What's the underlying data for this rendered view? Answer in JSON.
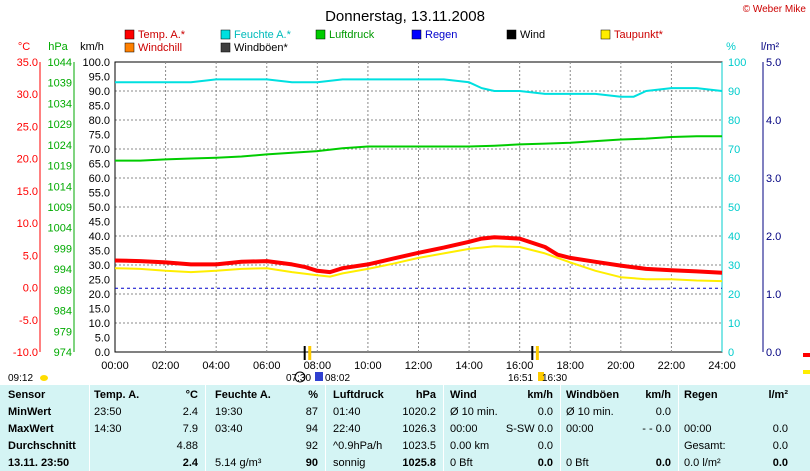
{
  "title": "Donnerstag, 13.11.2008",
  "credit": "© Weber Mike",
  "legend": [
    {
      "label": "Temp. A.*",
      "color": "#ff0000"
    },
    {
      "label": "Feuchte A.*",
      "color": "#00e0e0"
    },
    {
      "label": "Luftdruck",
      "color": "#00cc00"
    },
    {
      "label": "Regen",
      "color": "#0000ff"
    },
    {
      "label": "Wind",
      "color": "#000000"
    },
    {
      "label": "Taupunkt*",
      "color": "#ffee00"
    },
    {
      "label": "Windchill",
      "color": "#ff8000"
    },
    {
      "label": "Windböen*",
      "color": "#404040"
    }
  ],
  "axis_units": {
    "temp": "°C",
    "pressure": "hPa",
    "wind": "km/h",
    "humidity": "%",
    "rain": "l/m²"
  },
  "sun_times": {
    "sunrise": "07:30",
    "sunrise2": "08:02",
    "sunset": "16:51",
    "sunset2": "16:30"
  },
  "moon_time": "09:12",
  "chart_data": {
    "type": "line",
    "xlabel": "",
    "x_ticks": [
      "00:00",
      "02:00",
      "04:00",
      "06:00",
      "08:00",
      "10:00",
      "12:00",
      "14:00",
      "16:00",
      "18:00",
      "20:00",
      "22:00",
      "24:00"
    ],
    "temp_axis": {
      "range": [
        -10,
        35
      ],
      "ticks": [
        "35.0",
        "30.0",
        "25.0",
        "20.0",
        "15.0",
        "10.0",
        "5.0",
        "0.0",
        "-5.0",
        "-10.0"
      ]
    },
    "pressure_axis": {
      "range": [
        974,
        1044
      ],
      "ticks": [
        "1044",
        "1039",
        "1034",
        "1029",
        "1024",
        "1019",
        "1014",
        "1009",
        "1004",
        "999",
        "994",
        "989",
        "984",
        "979",
        "974"
      ]
    },
    "wind_axis": {
      "range": [
        0,
        100
      ],
      "ticks": [
        "100.0",
        "95.0",
        "90.0",
        "85.0",
        "80.0",
        "75.0",
        "70.0",
        "65.0",
        "60.0",
        "55.0",
        "50.0",
        "45.0",
        "40.0",
        "35.0",
        "30.0",
        "25.0",
        "20.0",
        "15.0",
        "10.0",
        "5.0",
        "0.0"
      ]
    },
    "humidity_axis": {
      "range": [
        0,
        100
      ],
      "ticks": [
        "100",
        "90",
        "80",
        "70",
        "60",
        "50",
        "40",
        "30",
        "20",
        "10",
        "0"
      ]
    },
    "rain_axis": {
      "range": [
        0,
        5
      ],
      "ticks": [
        "5.0",
        "4.0",
        "3.0",
        "2.0",
        "1.0",
        "0.0"
      ]
    },
    "grid": true,
    "series": [
      {
        "name": "Feuchte A.*",
        "axis": "humidity",
        "color": "#00e0e0",
        "x": [
          0,
          1,
          2,
          3,
          4,
          5,
          6,
          7,
          8,
          9,
          10,
          11,
          12,
          13,
          14,
          14.5,
          15,
          16,
          17,
          18,
          19,
          20,
          20.5,
          21,
          22,
          23,
          24
        ],
        "y": [
          93,
          93,
          93,
          93,
          94,
          94,
          94,
          93,
          93,
          94,
          94,
          94,
          94,
          94,
          93,
          91,
          90,
          90,
          89,
          89,
          89,
          88,
          88,
          90,
          91,
          91,
          90
        ]
      },
      {
        "name": "Luftdruck",
        "axis": "pressure",
        "color": "#00cc00",
        "x": [
          0,
          1,
          2,
          3,
          4,
          5,
          6,
          7,
          8,
          9,
          10,
          11,
          12,
          13,
          14,
          15,
          16,
          17,
          18,
          19,
          20,
          21,
          22,
          23,
          24
        ],
        "y": [
          1020.2,
          1020.2,
          1020.5,
          1020.7,
          1020.9,
          1021.2,
          1021.7,
          1022.1,
          1022.5,
          1023.2,
          1023.6,
          1023.6,
          1023.6,
          1023.6,
          1023.6,
          1023.8,
          1024.1,
          1024.3,
          1024.5,
          1024.9,
          1025.3,
          1025.5,
          1025.9,
          1026.1,
          1026.1
        ]
      },
      {
        "name": "Temp. A.*",
        "axis": "temp",
        "color": "#ff0000",
        "x": [
          0,
          1,
          2,
          3,
          4,
          5,
          6,
          7,
          7.5,
          8,
          8.5,
          9,
          10,
          11,
          12,
          13,
          14,
          14.5,
          15,
          16,
          17,
          17.5,
          18,
          19,
          20,
          21,
          22,
          23,
          24
        ],
        "y": [
          4.2,
          4.1,
          3.9,
          3.6,
          3.6,
          4.0,
          4.1,
          3.6,
          3.2,
          2.6,
          2.4,
          3.0,
          3.6,
          4.5,
          5.4,
          6.2,
          7.1,
          7.6,
          7.8,
          7.6,
          6.3,
          5.1,
          4.6,
          4.0,
          3.4,
          2.9,
          2.7,
          2.5,
          2.3
        ]
      },
      {
        "name": "Taupunkt*",
        "axis": "temp",
        "color": "#ffee00",
        "x": [
          0,
          1,
          2,
          3,
          4,
          5,
          6,
          7,
          8,
          8.5,
          9,
          10,
          11,
          12,
          13,
          14,
          15,
          16,
          17,
          18,
          19,
          20,
          21,
          22,
          23,
          24
        ],
        "y": [
          3.0,
          2.9,
          2.6,
          2.4,
          2.6,
          2.9,
          3.0,
          2.4,
          1.9,
          1.7,
          2.2,
          2.9,
          3.7,
          4.6,
          5.3,
          6.0,
          6.4,
          6.3,
          5.3,
          3.9,
          2.6,
          1.6,
          1.3,
          1.3,
          1.1,
          1.0
        ]
      },
      {
        "name": "Regen",
        "axis": "rain",
        "color": "#0000cc",
        "dashed": true,
        "x": [
          0,
          24
        ],
        "y": [
          1.1,
          1.1
        ]
      }
    ],
    "markers": {
      "wind_ticks": [
        7.5,
        16.5
      ],
      "yellow_ticks": [
        7.7,
        16.7
      ]
    }
  },
  "table": {
    "headers": [
      "Sensor",
      "Temp. A.",
      "°C",
      "Feuchte A.",
      "%",
      "Luftdruck",
      "hPa",
      "Wind",
      "km/h",
      "Windböen",
      "km/h",
      "Regen",
      "l/m²"
    ],
    "rows": [
      {
        "label": "MinWert",
        "c1": "23:50",
        "c2": "2.4",
        "c3": "19:30",
        "c4": "87",
        "c5": "01:40",
        "c6": "1020.2",
        "c7": "Ø 10 min.",
        "c8": "0.0",
        "c9": "Ø 10 min.",
        "c10": "0.0",
        "c11": "",
        "c12": ""
      },
      {
        "label": "MaxWert",
        "c1": "14:30",
        "c2": "7.9",
        "c3": "03:40",
        "c4": "94",
        "c5": "22:40",
        "c6": "1026.3",
        "c7": "00:00",
        "c8": "S-SW 0.0",
        "c9": "00:00",
        "c10": "- - 0.0",
        "c11": "00:00",
        "c12": "0.0"
      },
      {
        "label": "Durchschnitt",
        "c1": "",
        "c2": "4.88",
        "c3": "",
        "c4": "92",
        "c5": "^0.9hPa/h",
        "c6": "1023.5",
        "c7": "0.00 km",
        "c8": "0.0",
        "c9": "",
        "c10": "",
        "c11": "Gesamt:",
        "c12": "0.0"
      },
      {
        "label": "13.11. 23:50",
        "c1": "",
        "c2": "2.4",
        "c3": "5.14 g/m³",
        "c4": "90",
        "c5": "sonnig",
        "c6": "1025.8",
        "c7": "0 Bft",
        "c8": "0.0",
        "c9": "0 Bft",
        "c10": "0.0",
        "c11": "0.0 l/m²",
        "c12": "0.0"
      }
    ]
  }
}
